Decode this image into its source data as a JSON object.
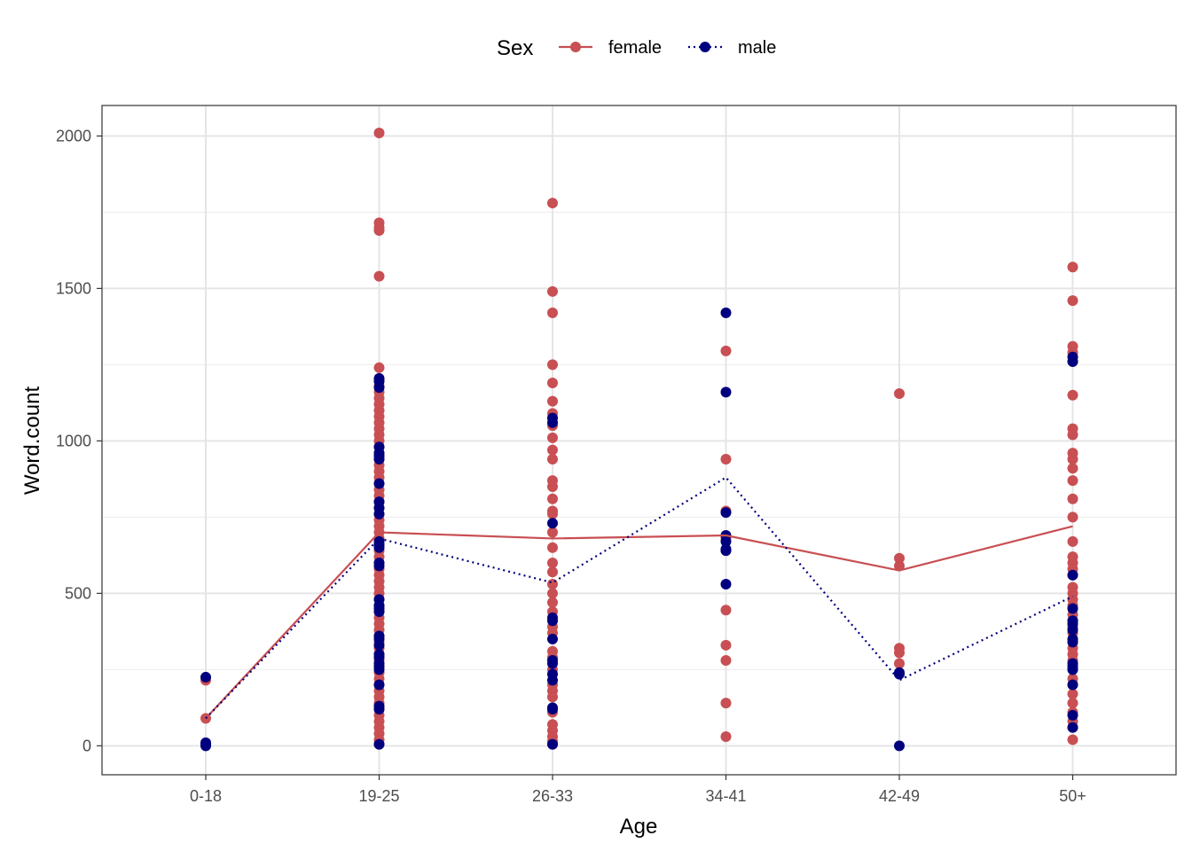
{
  "chart_data": {
    "type": "scatter",
    "xlabel": "Age",
    "ylabel": "Word.count",
    "categories": [
      "0-18",
      "19-25",
      "26-33",
      "34-41",
      "42-49",
      "50+"
    ],
    "ylim": [
      -95,
      2100
    ],
    "yticks": [
      0,
      500,
      1000,
      1500,
      2000
    ],
    "yminor": [
      250,
      750,
      1250,
      1750
    ],
    "grid": true,
    "legend": {
      "title": "Sex",
      "position": "top",
      "entries": [
        {
          "key": "female",
          "label": "female"
        },
        {
          "key": "male",
          "label": "male"
        }
      ]
    },
    "colors": {
      "female": "#c84f53",
      "male": "#00007f"
    },
    "series": [
      {
        "name": "female",
        "line_style": "solid",
        "means": [
          90,
          700,
          680,
          690,
          575,
          720
        ],
        "points": [
          [
            [
              215,
              90,
              5
            ]
          ],
          [
            [
              2010,
              1715,
              1700,
              1690,
              1540,
              1240,
              1200,
              1180,
              1160,
              1140,
              1120,
              1100,
              1080,
              1060,
              1040,
              1020,
              1000,
              980,
              960,
              940,
              920,
              900,
              880,
              860,
              840,
              820,
              800,
              780,
              760,
              740,
              720,
              700,
              680,
              660,
              640,
              620,
              600,
              580,
              560,
              540,
              520,
              500,
              480,
              460,
              440,
              420,
              400,
              380,
              360,
              340,
              320,
              300,
              280,
              260,
              240,
              220,
              200,
              180,
              160,
              140,
              120,
              100,
              80,
              60,
              40,
              20,
              5
            ]
          ],
          [
            [
              1780,
              1490,
              1420,
              1250,
              1190,
              1130,
              1090,
              1050,
              1010,
              970,
              940,
              870,
              850,
              810,
              770,
              760,
              700,
              650,
              600,
              570,
              530,
              500,
              470,
              440,
              390,
              370,
              310,
              290,
              250,
              200,
              180,
              160,
              110,
              70,
              50,
              30,
              15,
              5
            ]
          ],
          [
            [
              1295,
              940,
              770,
              680,
              640,
              445,
              330,
              280,
              140,
              30
            ]
          ],
          [
            [
              1155,
              615,
              590,
              320,
              305,
              270
            ]
          ],
          [
            [
              1570,
              1460,
              1310,
              1290,
              1260,
              1150,
              1040,
              1020,
              960,
              940,
              910,
              870,
              810,
              750,
              670,
              620,
              600,
              580,
              560,
              520,
              500,
              480,
              460,
              430,
              410,
              390,
              370,
              340,
              320,
              300,
              280,
              250,
              220,
              200,
              170,
              140,
              110,
              80,
              60,
              20
            ]
          ]
        ]
      },
      {
        "name": "male",
        "line_style": "dotted",
        "means": [
          90,
          680,
          535,
          880,
          215,
          490
        ],
        "points": [
          [
            [
              225,
              10,
              5,
              0
            ]
          ],
          [
            [
              1205,
              1195,
              1175,
              980,
              960,
              950,
              940,
              860,
              800,
              780,
              760,
              670,
              660,
              650,
              600,
              590,
              480,
              460,
              450,
              440,
              360,
              350,
              330,
              300,
              290,
              270,
              260,
              250,
              200,
              130,
              120,
              5
            ]
          ],
          [
            [
              1075,
              1060,
              730,
              420,
              410,
              350,
              280,
              270,
              235,
              215,
              125,
              120,
              5
            ]
          ],
          [
            [
              1420,
              1160,
              765,
              690,
              670,
              645,
              640,
              530
            ]
          ],
          [
            [
              240,
              235,
              0
            ]
          ],
          [
            [
              1275,
              1260,
              560,
              450,
              410,
              400,
              380,
              350,
              340,
              270,
              260,
              250,
              200,
              100,
              60
            ]
          ]
        ]
      }
    ]
  }
}
